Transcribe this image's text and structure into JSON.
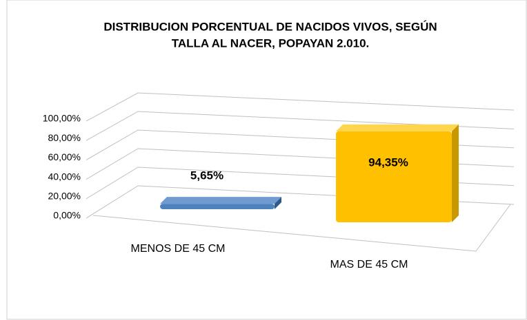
{
  "chart_data": {
    "type": "bar3d",
    "title": [
      "DISTRIBUCION PORCENTUAL  DE NACIDOS VIVOS, SEGÚN",
      "TALLA AL NACER, POPAYAN 2.010."
    ],
    "categories": [
      "MENOS DE 45 CM",
      "MAS DE 45 CM"
    ],
    "values": [
      5.65,
      94.35
    ],
    "value_labels": [
      "5,65%",
      "94,35%"
    ],
    "colors": [
      "#4f81bd",
      "#ffc000"
    ],
    "ylim": [
      0,
      100
    ],
    "yticks": [
      {
        "value": 0,
        "label": "0,00%"
      },
      {
        "value": 20,
        "label": "20,00%"
      },
      {
        "value": 40,
        "label": "40,00%"
      },
      {
        "value": 60,
        "label": "60,00%"
      },
      {
        "value": 80,
        "label": "80,00%"
      },
      {
        "value": 100,
        "label": "100,00%"
      }
    ],
    "grid": true
  }
}
